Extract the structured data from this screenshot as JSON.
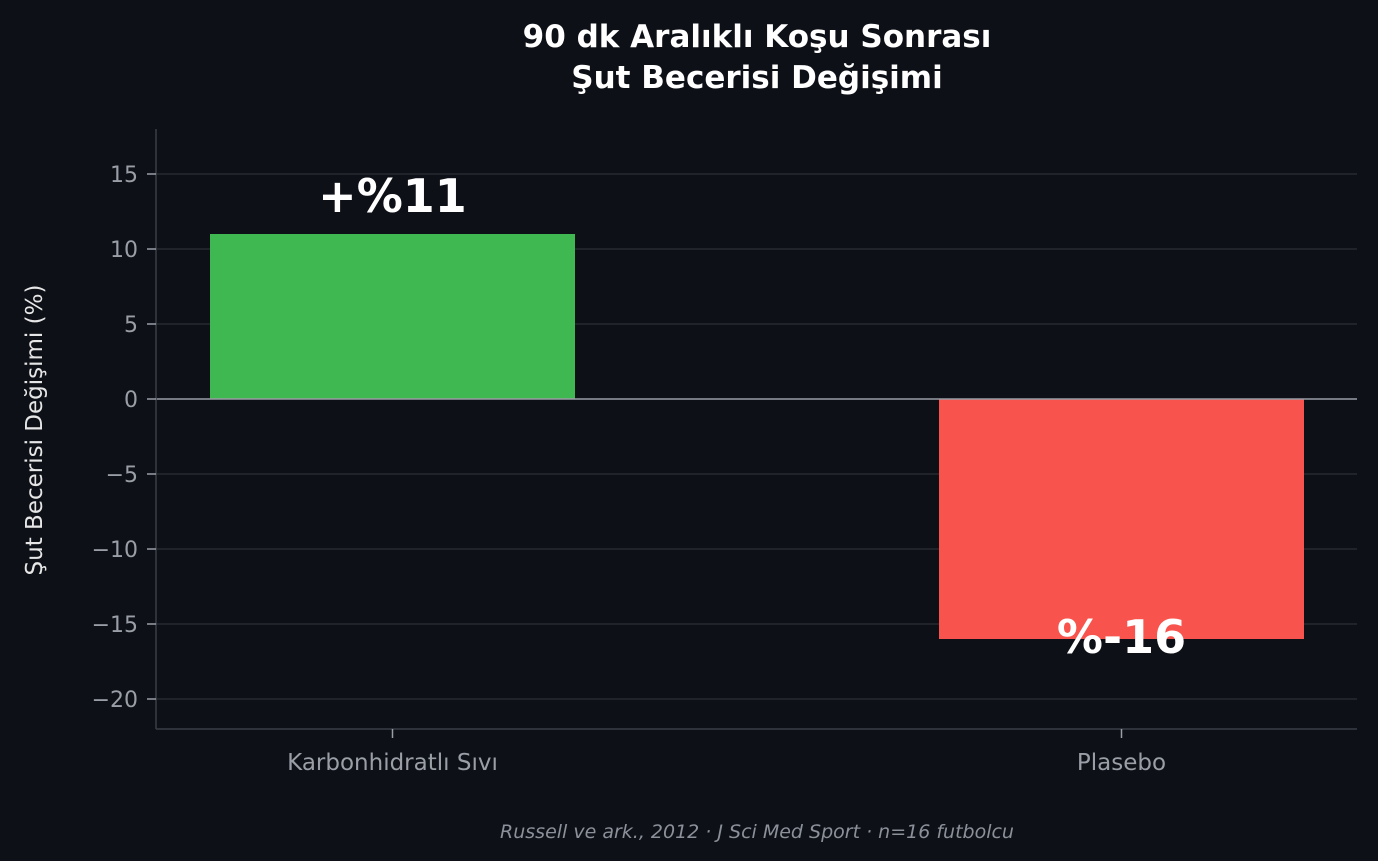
{
  "chart_data": {
    "type": "bar",
    "title_lines": [
      "90 dk Aralıklı Koşu Sonrası",
      "Şut Becerisi Değişimi"
    ],
    "ylabel": "Şut Becerisi Değişimi (%)",
    "xlabel": "",
    "categories": [
      "Karbonhidratlı Sıvı",
      "Plasebo"
    ],
    "values": [
      11,
      -16
    ],
    "data_labels": [
      "+%11",
      "%-16"
    ],
    "colors": [
      "#40b851",
      "#f8534d"
    ],
    "ylim": [
      -22,
      18
    ],
    "yticks": [
      15,
      10,
      5,
      0,
      -5,
      -10,
      -15,
      -20
    ],
    "ytick_labels": [
      "15",
      "10",
      "5",
      "0",
      "−5",
      "−10",
      "−15",
      "−20"
    ],
    "grid": "horizontal",
    "source": "Russell ve ark., 2012 · J Sci Med Sport · n=16 futbolcu"
  }
}
